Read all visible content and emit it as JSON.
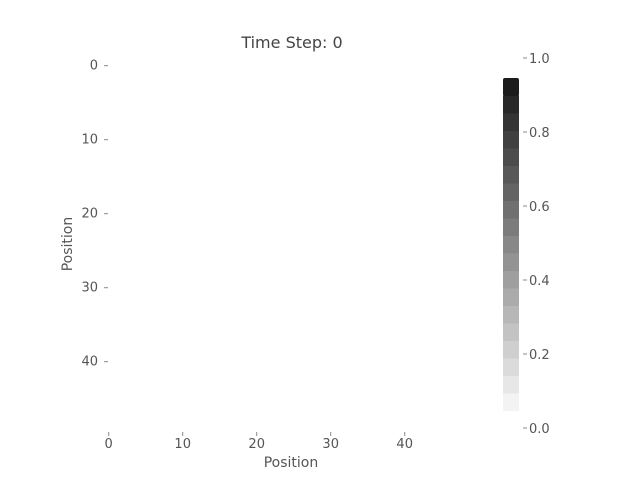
{
  "chart_data": {
    "type": "heatmap",
    "title": "Time Step: 0",
    "xlabel": "Position",
    "ylabel": "Position",
    "grid": false,
    "grid_size": [
      50,
      50
    ],
    "xlim": [
      0,
      49
    ],
    "ylim": [
      0,
      49
    ],
    "x_ticks": [
      "0",
      "10",
      "20",
      "30",
      "40"
    ],
    "y_ticks": [
      "0",
      "10",
      "20",
      "30",
      "40"
    ],
    "values": "all cells approximately 0.0",
    "colorbar": {
      "range": [
        0.0,
        1.0
      ],
      "ticks": [
        "0.0",
        "0.2",
        "0.4",
        "0.6",
        "0.8",
        "1.0"
      ],
      "levels": 20,
      "low_color": "#ffffff",
      "high_color": "#1c1c1c"
    },
    "background_color": "#ffffff"
  }
}
